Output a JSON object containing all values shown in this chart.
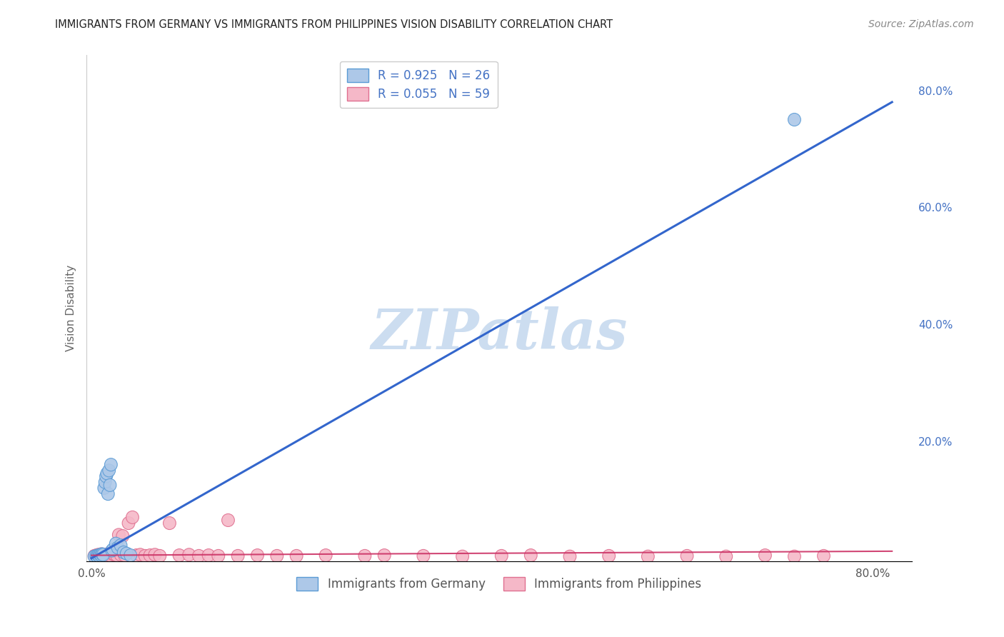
{
  "title": "IMMIGRANTS FROM GERMANY VS IMMIGRANTS FROM PHILIPPINES VISION DISABILITY CORRELATION CHART",
  "source": "Source: ZipAtlas.com",
  "ylabel": "Vision Disability",
  "x_tick_labels": [
    "0.0%",
    "",
    "",
    "",
    "80.0%"
  ],
  "x_tick_vals": [
    0.0,
    0.2,
    0.4,
    0.6,
    0.8
  ],
  "y_tick_labels": [
    "20.0%",
    "40.0%",
    "60.0%",
    "80.0%"
  ],
  "y_tick_vals": [
    0.2,
    0.4,
    0.6,
    0.8
  ],
  "xlim": [
    -0.005,
    0.84
  ],
  "ylim": [
    -0.005,
    0.86
  ],
  "legend_entry1": "R = 0.925   N = 26",
  "legend_entry2": "R = 0.055   N = 59",
  "legend_label1": "Immigrants from Germany",
  "legend_label2": "Immigrants from Philippines",
  "germany_color": "#adc8e8",
  "germany_edge": "#5b9bd5",
  "philippines_color": "#f5b8c8",
  "philippines_edge": "#e07090",
  "trend_germany_color": "#3366cc",
  "trend_philippines_color": "#cc3366",
  "watermark": "ZIPatlas",
  "watermark_color": "#ccddf0",
  "germany_x": [
    0.003,
    0.005,
    0.006,
    0.007,
    0.008,
    0.009,
    0.01,
    0.011,
    0.012,
    0.013,
    0.014,
    0.015,
    0.016,
    0.017,
    0.018,
    0.019,
    0.02,
    0.021,
    0.022,
    0.025,
    0.027,
    0.03,
    0.033,
    0.036,
    0.04,
    0.72
  ],
  "germany_y": [
    0.003,
    0.004,
    0.003,
    0.005,
    0.004,
    0.006,
    0.005,
    0.007,
    0.006,
    0.12,
    0.13,
    0.14,
    0.145,
    0.11,
    0.15,
    0.125,
    0.16,
    0.013,
    0.015,
    0.025,
    0.018,
    0.022,
    0.01,
    0.008,
    0.005,
    0.75
  ],
  "philippines_x": [
    0.003,
    0.004,
    0.005,
    0.006,
    0.007,
    0.008,
    0.009,
    0.01,
    0.011,
    0.012,
    0.013,
    0.014,
    0.015,
    0.016,
    0.017,
    0.018,
    0.019,
    0.02,
    0.022,
    0.024,
    0.026,
    0.028,
    0.03,
    0.032,
    0.034,
    0.038,
    0.042,
    0.046,
    0.05,
    0.055,
    0.06,
    0.065,
    0.07,
    0.08,
    0.09,
    0.1,
    0.11,
    0.12,
    0.13,
    0.14,
    0.15,
    0.17,
    0.19,
    0.21,
    0.24,
    0.28,
    0.3,
    0.34,
    0.38,
    0.42,
    0.45,
    0.49,
    0.53,
    0.57,
    0.61,
    0.65,
    0.69,
    0.72,
    0.75
  ],
  "philippines_y": [
    0.004,
    0.003,
    0.005,
    0.004,
    0.006,
    0.004,
    0.005,
    0.007,
    0.004,
    0.006,
    0.005,
    0.004,
    0.006,
    0.005,
    0.004,
    0.008,
    0.005,
    0.01,
    0.007,
    0.006,
    0.005,
    0.04,
    0.006,
    0.038,
    0.005,
    0.06,
    0.07,
    0.005,
    0.006,
    0.004,
    0.005,
    0.006,
    0.004,
    0.06,
    0.005,
    0.006,
    0.004,
    0.005,
    0.004,
    0.065,
    0.004,
    0.005,
    0.004,
    0.004,
    0.005,
    0.004,
    0.005,
    0.004,
    0.003,
    0.004,
    0.005,
    0.003,
    0.004,
    0.003,
    0.004,
    0.003,
    0.005,
    0.003,
    0.004
  ],
  "germany_trend_x0": 0.0,
  "germany_trend_y0": 0.0,
  "germany_trend_x1": 0.82,
  "germany_trend_y1": 0.78,
  "philippines_trend_x0": 0.0,
  "philippines_trend_y0": 0.005,
  "philippines_trend_x1": 0.82,
  "philippines_trend_y1": 0.012
}
